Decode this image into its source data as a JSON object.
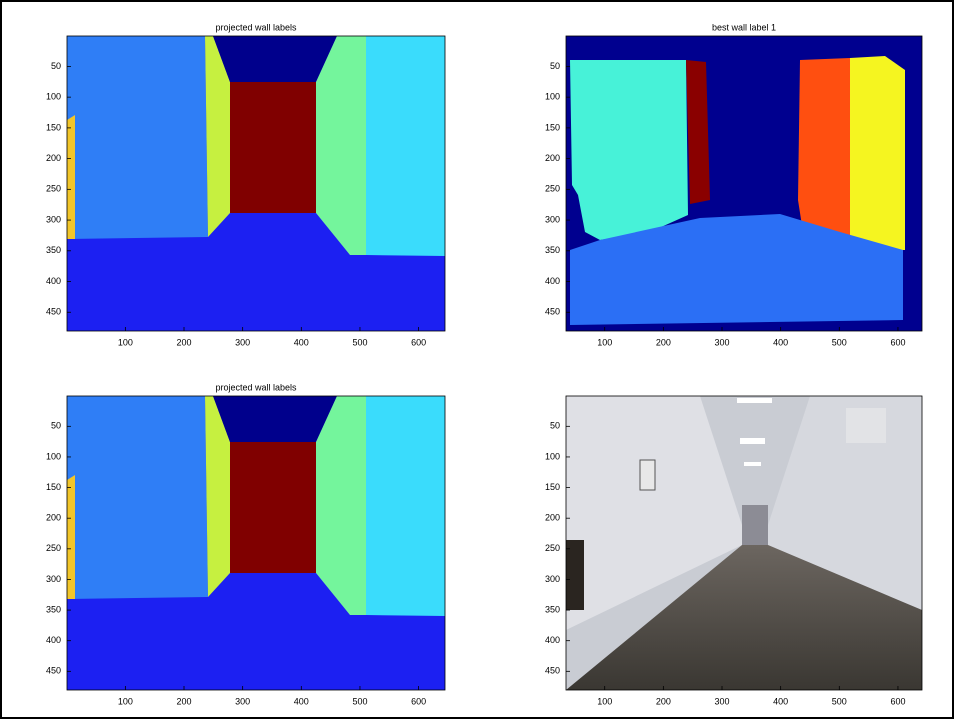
{
  "chart_data": [
    {
      "type": "image",
      "title": "projected wall labels",
      "xlim": [
        0.5,
        645
      ],
      "ylim": [
        0.5,
        480.5
      ],
      "xticks": [
        100,
        200,
        300,
        400,
        500,
        600
      ],
      "yticks": [
        50,
        100,
        150,
        200,
        250,
        300,
        350,
        400,
        450
      ]
    },
    {
      "type": "image",
      "title": "best wall label 1",
      "xlim": [
        34,
        641
      ],
      "ylim": [
        0.5,
        480.5
      ],
      "xticks": [
        100,
        200,
        300,
        400,
        500,
        600
      ],
      "yticks": [
        50,
        100,
        150,
        200,
        250,
        300,
        350,
        400,
        450
      ]
    },
    {
      "type": "image",
      "title": "projected wall labels",
      "xlim": [
        0.5,
        645
      ],
      "ylim": [
        0.5,
        480.5
      ],
      "xticks": [
        100,
        200,
        300,
        400,
        500,
        600
      ],
      "yticks": [
        50,
        100,
        150,
        200,
        250,
        300,
        350,
        400,
        450
      ]
    },
    {
      "type": "image",
      "xlim": [
        34,
        641
      ],
      "ylim": [
        0.5,
        480.5
      ],
      "xticks": [
        100,
        200,
        300,
        400,
        500,
        600
      ],
      "yticks": [
        50,
        100,
        150,
        200,
        250,
        300,
        350,
        400,
        450
      ]
    }
  ]
}
